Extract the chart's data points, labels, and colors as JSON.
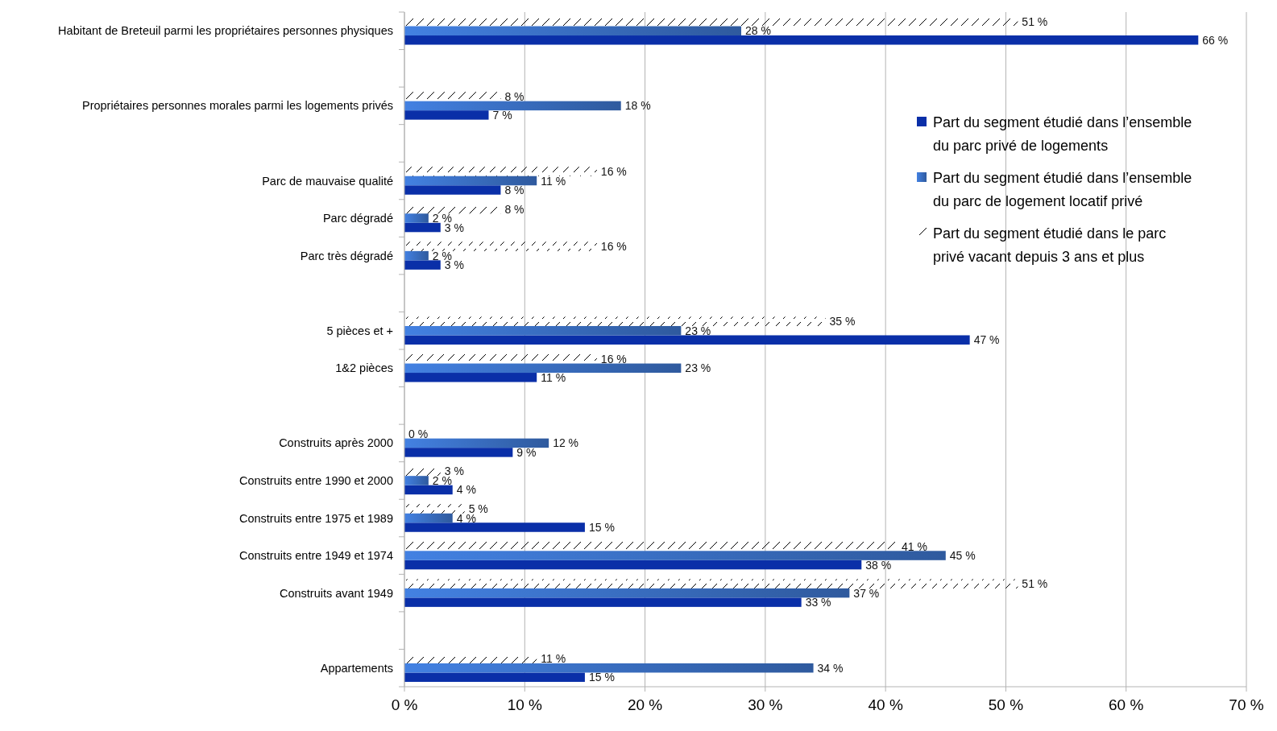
{
  "chart_data": {
    "type": "bar",
    "orientation": "horizontal",
    "categories": [
      "Habitant de Breteuil parmi les propriétaires personnes physiques",
      null,
      "Propriétaires personnes morales parmi les logements privés",
      null,
      "Parc de mauvaise qualité",
      "Parc dégradé",
      "Parc très dégradé",
      null,
      "5 pièces et +",
      "1&2 pièces",
      null,
      "Construits après 2000",
      "Construits entre 1990 et 2000",
      "Construits entre 1975 et 1989",
      "Construits entre 1949 et 1974",
      "Construits avant 1949",
      null,
      "Appartements"
    ],
    "series": [
      {
        "name": "Part du segment étudié dans l’ensemble du parc privé de logements",
        "color": "#0a2fa8",
        "values": [
          66,
          null,
          7,
          null,
          8,
          3,
          3,
          null,
          47,
          11,
          null,
          9,
          4,
          15,
          38,
          33,
          null,
          15
        ],
        "value_labels": [
          "66 %",
          null,
          "7 %",
          null,
          "8 %",
          "3 %",
          "3 %",
          null,
          "47 %",
          "11 %",
          null,
          "9 %",
          "4 %",
          "15 %",
          "38 %",
          "33 %",
          null,
          "15 %"
        ]
      },
      {
        "name": "Part du segment étudié dans l’ensemble du parc de logement locatif privé",
        "color": "#2f5a9e",
        "values": [
          28,
          null,
          18,
          null,
          11,
          2,
          2,
          null,
          23,
          23,
          null,
          12,
          2,
          4,
          45,
          37,
          null,
          34
        ],
        "value_labels": [
          "28 %",
          null,
          "18 %",
          null,
          "11 %",
          "2 %",
          "2 %",
          null,
          "23 %",
          "23 %",
          null,
          "12 %",
          "2 %",
          "4 %",
          "45 %",
          "37 %",
          null,
          "34 %"
        ]
      },
      {
        "name": "Part du segment étudié dans le parc privé vacant depuis 3 ans et plus",
        "color": "#000000",
        "values": [
          51,
          null,
          8,
          null,
          16,
          8,
          16,
          null,
          35,
          16,
          null,
          0,
          3,
          5,
          41,
          51,
          null,
          11
        ],
        "value_labels": [
          "51 %",
          null,
          "8 %",
          null,
          "16 %",
          "8 %",
          "16 %",
          null,
          "35 %",
          "16 %",
          null,
          "0 %",
          "3 %",
          "5 %",
          "41 %",
          "51 %",
          null,
          "11 %"
        ]
      }
    ],
    "xlim": [
      0,
      70
    ],
    "xticks": [
      {
        "value": 0,
        "label": "0 %"
      },
      {
        "value": 10,
        "label": "10 %"
      },
      {
        "value": 20,
        "label": "20 %"
      },
      {
        "value": 30,
        "label": "30 %"
      },
      {
        "value": 40,
        "label": "40 %"
      },
      {
        "value": 50,
        "label": "50 %"
      },
      {
        "value": 60,
        "label": "60 %"
      },
      {
        "value": 70,
        "label": "70 %"
      }
    ],
    "grid": "x",
    "legend": "top right"
  }
}
